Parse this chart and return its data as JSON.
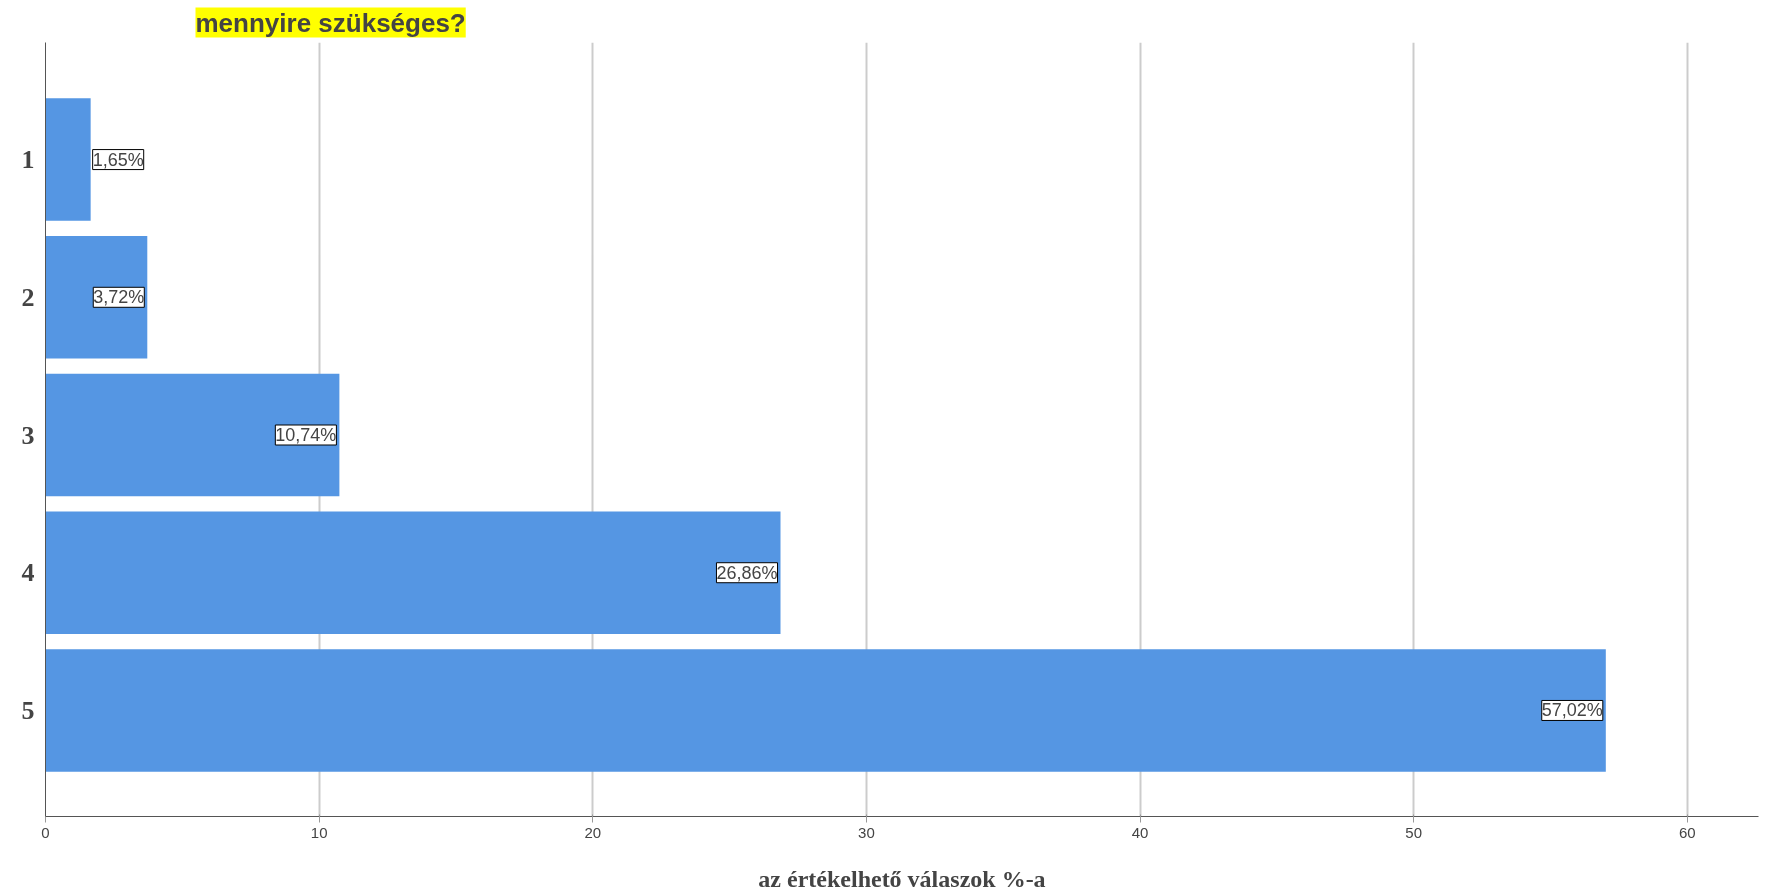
{
  "chart_data": {
    "type": "bar",
    "orientation": "horizontal",
    "title": "mennyire szükséges?",
    "xlabel": "az értékelhető válaszok %-a",
    "categories": [
      "1",
      "2",
      "3",
      "4",
      "5"
    ],
    "values": [
      1.65,
      3.72,
      10.74,
      26.86,
      57.02
    ],
    "value_labels": [
      "1,65%",
      "3,72%",
      "10,74%",
      "26,86%",
      "57,02%"
    ],
    "color": "#5596e3",
    "xlim": [
      0,
      62.6
    ],
    "xticks": [
      0,
      10,
      20,
      30,
      40,
      50,
      60
    ],
    "grid": "x"
  }
}
